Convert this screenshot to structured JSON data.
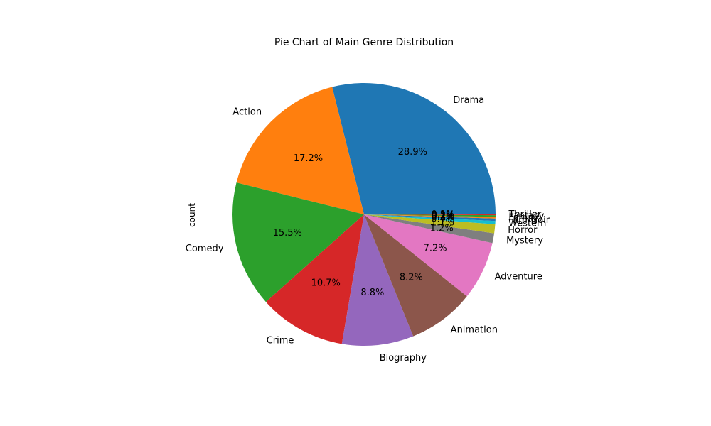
{
  "chart_data": {
    "type": "pie",
    "title": "Pie Chart of Main Genre Distribution",
    "ylabel": "count",
    "slices": [
      {
        "label": "Drama",
        "percent": 28.9,
        "pct_label": "28.9%",
        "color": "#1f77b4"
      },
      {
        "label": "Action",
        "percent": 17.2,
        "pct_label": "17.2%",
        "color": "#ff7f0e"
      },
      {
        "label": "Comedy",
        "percent": 15.5,
        "pct_label": "15.5%",
        "color": "#2ca02c"
      },
      {
        "label": "Crime",
        "percent": 10.7,
        "pct_label": "10.7%",
        "color": "#d62728"
      },
      {
        "label": "Biography",
        "percent": 8.8,
        "pct_label": "8.8%",
        "color": "#9467bd"
      },
      {
        "label": "Animation",
        "percent": 8.2,
        "pct_label": "8.2%",
        "color": "#8c564b"
      },
      {
        "label": "Adventure",
        "percent": 7.2,
        "pct_label": "7.2%",
        "color": "#e377c2"
      },
      {
        "label": "Mystery",
        "percent": 1.2,
        "pct_label": "1.2%",
        "color": "#7f7f7f"
      },
      {
        "label": "Horror",
        "percent": 1.1,
        "pct_label": "1.1%",
        "color": "#bcbd22"
      },
      {
        "label": "Western",
        "percent": 0.4,
        "pct_label": "0.4%",
        "color": "#17becf"
      },
      {
        "label": "Film-Noir",
        "percent": 0.3,
        "pct_label": "0.3%",
        "color": "#1f77b4"
      },
      {
        "label": "Family",
        "percent": 0.2,
        "pct_label": "0.2%",
        "color": "#ff7f0e"
      },
      {
        "label": "Fantasy",
        "percent": 0.2,
        "pct_label": "0.2%",
        "color": "#2ca02c"
      },
      {
        "label": "Thriller",
        "percent": 0.1,
        "pct_label": "0.1%",
        "color": "#d62728"
      }
    ],
    "start_angle": 0,
    "direction": "counterclockwise"
  }
}
